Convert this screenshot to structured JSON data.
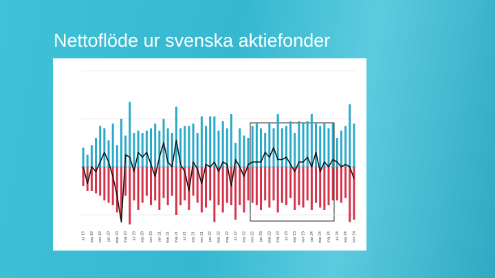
{
  "title": "Nettoflöde ur svenska aktiefonder",
  "chart_data": {
    "type": "bar-line",
    "categories": [
      "jul 19",
      null,
      "sep 19",
      null,
      "nov 19",
      null,
      "jan 20",
      null,
      "mar 20",
      null,
      "maj 20",
      null,
      "jul 20",
      null,
      "sep 20",
      null,
      "nov 20",
      null,
      "jan 21",
      null,
      "mar 21",
      null,
      "maj 21",
      null,
      "jul 21",
      null,
      "sep 21",
      null,
      "nov 21",
      null,
      "jan 22",
      null,
      "mar 22",
      null,
      "maj 22",
      null,
      "jul 22",
      null,
      "sep 22",
      null,
      "nov 22",
      null,
      "jan 23",
      null,
      "mar 23",
      null,
      "maj 23",
      null,
      "jul 23",
      null,
      "sep 23",
      null,
      "nov 23",
      null,
      "jan 24",
      null,
      "mar 24",
      null,
      "maj 24",
      null,
      "jul 24",
      null,
      "sep 24",
      null,
      "nov 24"
    ],
    "series": [
      {
        "kind": "bar",
        "color": "#29a9c9",
        "values": [
          0.4,
          0.25,
          0.45,
          0.6,
          0.85,
          0.8,
          0.55,
          0.9,
          0.45,
          1.0,
          0.65,
          1.35,
          0.7,
          0.75,
          0.7,
          0.75,
          0.8,
          0.9,
          0.75,
          1.0,
          0.8,
          0.7,
          1.25,
          0.8,
          0.85,
          0.85,
          0.9,
          0.7,
          1.05,
          0.85,
          1.05,
          1.05,
          0.75,
          0.95,
          0.8,
          1.1,
          0.5,
          0.8,
          0.65,
          0.6,
          0.85,
          0.9,
          0.8,
          0.7,
          0.9,
          0.8,
          1.1,
          0.8,
          0.85,
          0.95,
          0.7,
          0.95,
          0.9,
          0.95,
          1.1,
          0.9,
          0.85,
          0.9,
          0.8,
          0.9,
          0.6,
          0.75,
          0.85,
          1.3,
          0.9
        ]
      },
      {
        "kind": "bar",
        "color": "#d6334a",
        "values": [
          -0.4,
          -0.5,
          -0.5,
          -0.55,
          -0.6,
          -0.7,
          -0.75,
          -0.8,
          -0.95,
          -1.05,
          -0.6,
          -1.2,
          -0.7,
          -0.9,
          -0.75,
          -0.6,
          -0.8,
          -0.7,
          -0.9,
          -0.65,
          -0.8,
          -0.6,
          -1.0,
          -0.8,
          -0.7,
          -0.9,
          -0.6,
          -0.75,
          -0.95,
          -0.85,
          -0.7,
          -1.15,
          -0.8,
          -0.95,
          -0.75,
          -0.8,
          -1.1,
          -0.8,
          -0.95,
          -0.7,
          -0.75,
          -0.8,
          -0.9,
          -0.7,
          -0.85,
          -0.7,
          -0.95,
          -0.75,
          -0.8,
          -0.65,
          -0.9,
          -0.8,
          -0.85,
          -0.7,
          -0.9,
          -0.75,
          -0.85,
          -0.9,
          -0.8,
          -0.7,
          -0.7,
          -0.75,
          -0.65,
          -1.15,
          -1.1
        ]
      },
      {
        "kind": "line",
        "color": "#111111",
        "values": [
          0.0,
          -0.35,
          0.0,
          -0.1,
          0.1,
          0.3,
          0.1,
          -0.2,
          -0.6,
          -1.15,
          0.25,
          0.2,
          -0.1,
          0.3,
          0.2,
          0.3,
          0.05,
          -0.2,
          0.2,
          0.5,
          0.1,
          0.0,
          0.55,
          0.05,
          -0.1,
          -0.5,
          0.1,
          -0.05,
          -0.35,
          0.05,
          0.0,
          0.1,
          -0.1,
          0.1,
          0.05,
          -0.4,
          0.15,
          0.0,
          -0.2,
          0.05,
          0.1,
          0.1,
          0.1,
          0.3,
          0.2,
          0.4,
          0.15,
          0.15,
          0.2,
          0.05,
          -0.1,
          0.1,
          0.1,
          0.2,
          0.0,
          0.3,
          -0.1,
          0.1,
          0.0,
          0.15,
          0.1,
          0.0,
          0.05,
          0.0,
          -0.25
        ]
      }
    ],
    "ylim": [
      -1.25,
      2
    ],
    "yticks": [
      -1,
      0,
      1,
      2
    ],
    "grid": true
  }
}
